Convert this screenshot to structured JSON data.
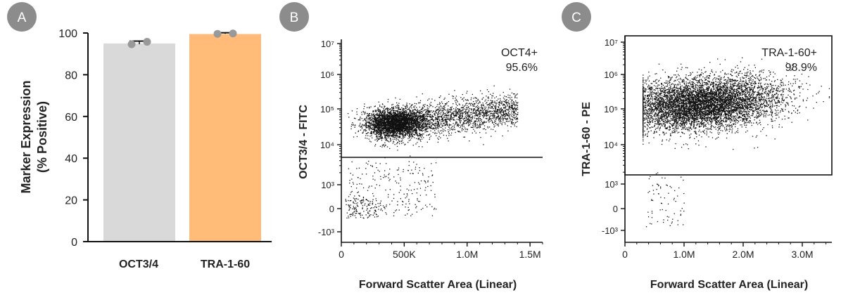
{
  "panel_badges": [
    "A",
    "B",
    "C"
  ],
  "colors": {
    "badge": "#8c8c8c",
    "bar_oct": "#d9d9d9",
    "bar_tra": "#ffbb77",
    "dot": "#999999",
    "axis": "#111111"
  },
  "chart_data": [
    {
      "type": "bar",
      "categories": [
        "OCT3/4",
        "TRA-1-60"
      ],
      "values": [
        95,
        99.5
      ],
      "replicates": [
        [
          94.6,
          95.8
        ],
        [
          99.6,
          99.8
        ]
      ],
      "ylabel": "Marker Expression",
      "ylabel2": "(% Positive)",
      "ylim": [
        0,
        100
      ],
      "yticks": [
        0,
        20,
        40,
        60,
        80,
        100
      ]
    },
    {
      "type": "scatter",
      "xlabel": "Forward Scatter Area (Linear)",
      "ylabel": "OCT3/4 - FITC",
      "xlim": [
        0,
        1600000
      ],
      "xticks": [
        {
          "v": 0,
          "label": "0"
        },
        {
          "v": 500000,
          "label": "500K"
        },
        {
          "v": 1000000,
          "label": "1.0M"
        },
        {
          "v": 1500000,
          "label": "1.5M"
        }
      ],
      "ytick_labels": [
        "-10³",
        "0",
        "10³",
        "10⁴",
        "10⁵",
        "10⁶",
        "10⁷"
      ],
      "gate_label": "OCT4+",
      "gate_value": "95.6%",
      "gate_threshold": 5000,
      "positive_fraction": 0.956
    },
    {
      "type": "scatter",
      "xlabel": "Forward Scatter Area (Linear)",
      "ylabel": "TRA-1-60 - PE",
      "xlim": [
        0,
        3500000
      ],
      "xticks": [
        {
          "v": 0,
          "label": "0"
        },
        {
          "v": 1000000,
          "label": "1.0M"
        },
        {
          "v": 2000000,
          "label": "2.0M"
        },
        {
          "v": 3000000,
          "label": "3.0M"
        }
      ],
      "ytick_labels": [
        "-10³",
        "0",
        "10³",
        "10⁴",
        "10⁵",
        "10⁶",
        "10⁷"
      ],
      "gate_label": "TRA-1-60+",
      "gate_value": "98.9%",
      "gate_threshold": 1500,
      "positive_fraction": 0.989
    }
  ]
}
